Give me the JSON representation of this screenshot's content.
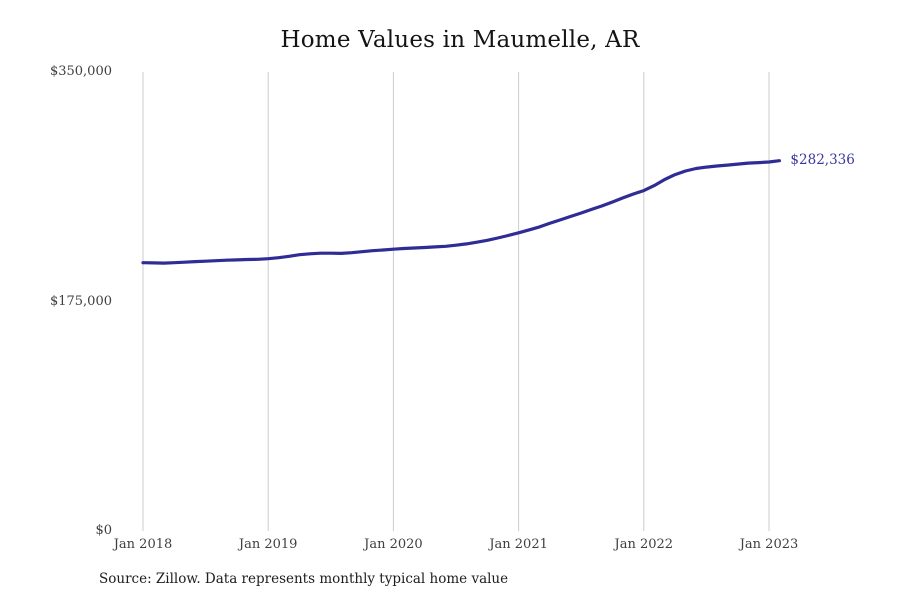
{
  "title": "Home Values in Maumelle, AR",
  "source_note": "Source: Zillow. Data represents monthly typical home value",
  "colors": {
    "line": "#2f2c96",
    "end_label": "#3a389b",
    "grid": "#cccccc",
    "title_text": "#141414",
    "axis_text": "#3f3f3f"
  },
  "chart_data": {
    "type": "line",
    "title": "Home Values in Maumelle, AR",
    "xlabel": "",
    "ylabel": "",
    "ylim": [
      0,
      350000
    ],
    "grid": "vertical-only",
    "legend": "none",
    "final_value": 282336,
    "final_value_label": "$282,336",
    "y_ticks": [
      {
        "label": "$0",
        "value": 0
      },
      {
        "label": "$175,000",
        "value": 175000
      },
      {
        "label": "$350,000",
        "value": 350000
      }
    ],
    "x_tick_labels": [
      "Jan 2018",
      "Jan 2019",
      "Jan 2020",
      "Jan 2021",
      "Jan 2022",
      "Jan 2023"
    ],
    "x_tick_indices": [
      0,
      12,
      24,
      36,
      48,
      60
    ],
    "x": [
      "Jan 2018",
      "Feb 2018",
      "Mar 2018",
      "Apr 2018",
      "May 2018",
      "Jun 2018",
      "Jul 2018",
      "Aug 2018",
      "Sep 2018",
      "Oct 2018",
      "Nov 2018",
      "Dec 2018",
      "Jan 2019",
      "Feb 2019",
      "Mar 2019",
      "Apr 2019",
      "May 2019",
      "Jun 2019",
      "Jul 2019",
      "Aug 2019",
      "Sep 2019",
      "Oct 2019",
      "Nov 2019",
      "Dec 2019",
      "Jan 2020",
      "Feb 2020",
      "Mar 2020",
      "Apr 2020",
      "May 2020",
      "Jun 2020",
      "Jul 2020",
      "Aug 2020",
      "Sep 2020",
      "Oct 2020",
      "Nov 2020",
      "Dec 2020",
      "Jan 2021",
      "Feb 2021",
      "Mar 2021",
      "Apr 2021",
      "May 2021",
      "Jun 2021",
      "Jul 2021",
      "Aug 2021",
      "Sep 2021",
      "Oct 2021",
      "Nov 2021",
      "Dec 2021",
      "Jan 2022",
      "Feb 2022",
      "Mar 2022",
      "Apr 2022",
      "May 2022",
      "Jun 2022",
      "Jul 2022",
      "Aug 2022",
      "Sep 2022",
      "Oct 2022",
      "Nov 2022",
      "Dec 2022",
      "Jan 2023",
      "Feb 2023"
    ],
    "values": [
      204600,
      204400,
      204300,
      204600,
      205000,
      205400,
      205700,
      206100,
      206500,
      206700,
      207000,
      207200,
      207600,
      208400,
      209500,
      210700,
      211400,
      211800,
      211800,
      211700,
      212200,
      213000,
      213700,
      214300,
      214900,
      215400,
      215800,
      216200,
      216600,
      217100,
      217900,
      218900,
      220200,
      221700,
      223400,
      225300,
      227400,
      229600,
      231900,
      234600,
      237200,
      239900,
      242500,
      245200,
      247900,
      250900,
      254000,
      257000,
      259600,
      263400,
      268000,
      271800,
      274500,
      276400,
      277500,
      278300,
      279000,
      279800,
      280500,
      280900,
      281400,
      282336
    ]
  }
}
